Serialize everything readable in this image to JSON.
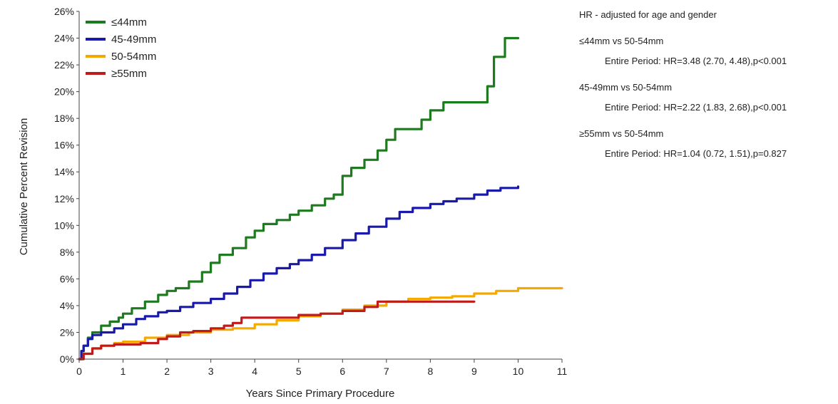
{
  "chart_data": {
    "type": "line",
    "xlabel": "Years Since Primary Procedure",
    "ylabel": "Cumulative Percent Revision",
    "xlim": [
      0,
      11
    ],
    "ylim": [
      0,
      26
    ],
    "x_ticks": [
      "0",
      "1",
      "2",
      "3",
      "4",
      "5",
      "6",
      "7",
      "8",
      "9",
      "10",
      "11"
    ],
    "y_ticks": [
      "0%",
      "2%",
      "4%",
      "6%",
      "8%",
      "10%",
      "12%",
      "14%",
      "16%",
      "18%",
      "20%",
      "22%",
      "24%",
      "26%"
    ],
    "grid": false,
    "legend_position": "top-left",
    "series": [
      {
        "name": "≤44mm",
        "color": "#1e7a1e",
        "points": [
          [
            0,
            0
          ],
          [
            0.05,
            0.6
          ],
          [
            0.1,
            1.0
          ],
          [
            0.2,
            1.6
          ],
          [
            0.3,
            2.0
          ],
          [
            0.5,
            2.5
          ],
          [
            0.7,
            2.8
          ],
          [
            0.9,
            3.1
          ],
          [
            1.0,
            3.4
          ],
          [
            1.2,
            3.8
          ],
          [
            1.5,
            4.3
          ],
          [
            1.8,
            4.8
          ],
          [
            2.0,
            5.1
          ],
          [
            2.2,
            5.3
          ],
          [
            2.5,
            5.8
          ],
          [
            2.8,
            6.5
          ],
          [
            3.0,
            7.2
          ],
          [
            3.2,
            7.8
          ],
          [
            3.5,
            8.3
          ],
          [
            3.8,
            9.1
          ],
          [
            4.0,
            9.6
          ],
          [
            4.2,
            10.1
          ],
          [
            4.5,
            10.4
          ],
          [
            4.8,
            10.8
          ],
          [
            5.0,
            11.1
          ],
          [
            5.3,
            11.5
          ],
          [
            5.6,
            12.0
          ],
          [
            5.8,
            12.3
          ],
          [
            6.0,
            13.7
          ],
          [
            6.2,
            14.3
          ],
          [
            6.5,
            14.9
          ],
          [
            6.8,
            15.6
          ],
          [
            7.0,
            16.4
          ],
          [
            7.2,
            17.2
          ],
          [
            7.5,
            17.2
          ],
          [
            7.8,
            17.9
          ],
          [
            8.0,
            18.6
          ],
          [
            8.3,
            19.2
          ],
          [
            8.6,
            19.2
          ],
          [
            9.0,
            19.2
          ],
          [
            9.2,
            19.2
          ],
          [
            9.3,
            20.4
          ],
          [
            9.45,
            22.6
          ],
          [
            9.6,
            22.6
          ],
          [
            9.7,
            24.0
          ],
          [
            10.0,
            24.0
          ]
        ]
      },
      {
        "name": "45-49mm",
        "color": "#1a1aaa",
        "points": [
          [
            0,
            0
          ],
          [
            0.05,
            0.6
          ],
          [
            0.1,
            1.0
          ],
          [
            0.2,
            1.5
          ],
          [
            0.3,
            1.8
          ],
          [
            0.5,
            2.0
          ],
          [
            0.8,
            2.3
          ],
          [
            1.0,
            2.6
          ],
          [
            1.3,
            3.0
          ],
          [
            1.5,
            3.2
          ],
          [
            1.8,
            3.5
          ],
          [
            2.0,
            3.6
          ],
          [
            2.3,
            3.9
          ],
          [
            2.6,
            4.2
          ],
          [
            3.0,
            4.5
          ],
          [
            3.3,
            4.9
          ],
          [
            3.6,
            5.4
          ],
          [
            3.9,
            5.9
          ],
          [
            4.2,
            6.4
          ],
          [
            4.5,
            6.8
          ],
          [
            4.8,
            7.1
          ],
          [
            5.0,
            7.4
          ],
          [
            5.3,
            7.8
          ],
          [
            5.6,
            8.3
          ],
          [
            6.0,
            8.9
          ],
          [
            6.3,
            9.4
          ],
          [
            6.6,
            9.9
          ],
          [
            7.0,
            10.5
          ],
          [
            7.3,
            11.0
          ],
          [
            7.6,
            11.3
          ],
          [
            8.0,
            11.6
          ],
          [
            8.3,
            11.8
          ],
          [
            8.6,
            12.0
          ],
          [
            9.0,
            12.3
          ],
          [
            9.3,
            12.6
          ],
          [
            9.6,
            12.8
          ],
          [
            10.0,
            12.9
          ]
        ]
      },
      {
        "name": "50-54mm",
        "color": "#f5a800",
        "points": [
          [
            0,
            0
          ],
          [
            0.1,
            0.4
          ],
          [
            0.3,
            0.8
          ],
          [
            0.5,
            1.0
          ],
          [
            0.8,
            1.2
          ],
          [
            1.0,
            1.3
          ],
          [
            1.5,
            1.6
          ],
          [
            2.0,
            1.8
          ],
          [
            2.5,
            2.0
          ],
          [
            3.0,
            2.2
          ],
          [
            3.5,
            2.3
          ],
          [
            4.0,
            2.6
          ],
          [
            4.5,
            2.9
          ],
          [
            5.0,
            3.2
          ],
          [
            5.5,
            3.4
          ],
          [
            6.0,
            3.7
          ],
          [
            6.5,
            4.0
          ],
          [
            7.0,
            4.3
          ],
          [
            7.5,
            4.5
          ],
          [
            8.0,
            4.6
          ],
          [
            8.5,
            4.7
          ],
          [
            9.0,
            4.9
          ],
          [
            9.5,
            5.1
          ],
          [
            10.0,
            5.3
          ],
          [
            11.0,
            5.3
          ]
        ]
      },
      {
        "name": "≥55mm",
        "color": "#c01a1a",
        "points": [
          [
            0,
            0
          ],
          [
            0.1,
            0.4
          ],
          [
            0.3,
            0.8
          ],
          [
            0.5,
            1.0
          ],
          [
            0.8,
            1.1
          ],
          [
            1.0,
            1.1
          ],
          [
            1.4,
            1.2
          ],
          [
            1.8,
            1.5
          ],
          [
            2.0,
            1.7
          ],
          [
            2.3,
            2.0
          ],
          [
            2.6,
            2.1
          ],
          [
            3.0,
            2.3
          ],
          [
            3.3,
            2.5
          ],
          [
            3.5,
            2.7
          ],
          [
            3.7,
            3.1
          ],
          [
            4.0,
            3.1
          ],
          [
            4.5,
            3.1
          ],
          [
            5.0,
            3.3
          ],
          [
            5.5,
            3.4
          ],
          [
            6.0,
            3.6
          ],
          [
            6.5,
            3.9
          ],
          [
            6.8,
            4.3
          ],
          [
            7.5,
            4.3
          ],
          [
            8.0,
            4.3
          ],
          [
            9.0,
            4.3
          ]
        ]
      }
    ]
  },
  "hr_panel": {
    "title": "HR - adjusted for age and gender",
    "groups": [
      {
        "comparison": "≤44mm vs 50-54mm",
        "result": "Entire Period: HR=3.48 (2.70, 4.48),p<0.001"
      },
      {
        "comparison": "45-49mm vs 50-54mm",
        "result": "Entire Period: HR=2.22 (1.83, 2.68),p<0.001"
      },
      {
        "comparison": "≥55mm vs 50-54mm",
        "result": "Entire Period: HR=1.04 (0.72, 1.51),p=0.827"
      }
    ]
  }
}
